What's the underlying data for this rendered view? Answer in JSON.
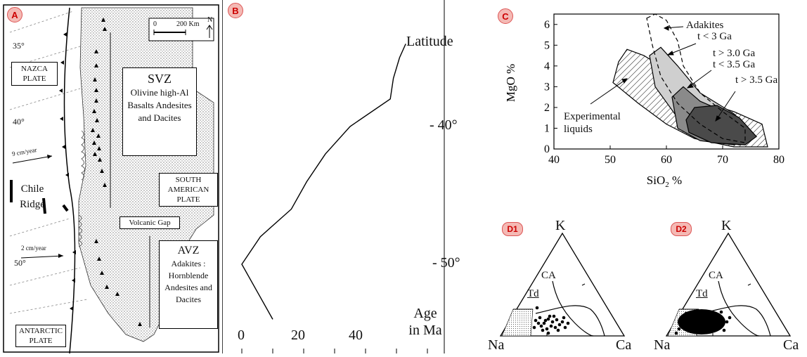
{
  "panel_a": {
    "badge": "A",
    "scale_zero": "0",
    "scale_distance": "200 Km",
    "north": "N",
    "lat_35": "35°",
    "lat_40": "40°",
    "lat_50": "50°",
    "nazca": "NAZCA PLATE",
    "svz_title": "SVZ",
    "svz_body": "Olivine high-Al Basalts Andesites and Dacites",
    "south_american": "SOUTH AMERICAN PLATE",
    "rate_9": "9 cm/year",
    "chile_ridge": "Chile Ridge",
    "volcanic_gap": "Volcanic Gap",
    "rate_2": "2 cm/year",
    "avz_title": "AVZ",
    "avz_body": "Adakites : Hornblende Andesites and Dacites",
    "antarctic": "ANTARCTIC PLATE"
  },
  "panel_b": {
    "badge": "B",
    "y_title": "Latitude",
    "y_tick_40": "- 40°",
    "y_tick_50": "- 50°",
    "x_title": "Age in Ma",
    "x_ticks": [
      "0",
      "20",
      "40"
    ]
  },
  "panel_c": {
    "badge": "C",
    "label_adakites": "Adakites",
    "label_t3": "t < 3 Ga",
    "label_t30": "t > 3.0 Ga",
    "label_t35a": "t < 3.5 Ga",
    "label_t35b": "t > 3.5 Ga",
    "label_exp1": "Experimental",
    "label_exp2": "liquids"
  },
  "panel_d1": {
    "badge": "D1",
    "k": "K",
    "na": "Na",
    "ca": "Ca",
    "ca_lbl": "CA",
    "td": "Td"
  },
  "panel_d2": {
    "badge": "D2",
    "k": "K",
    "na": "Na",
    "ca": "Ca",
    "ca_lbl": "CA",
    "td": "Td"
  },
  "chart_data": [
    {
      "type": "line",
      "panel": "B",
      "xlabel": "Age in Ma",
      "ylabel": "Latitude",
      "x_ticks": [
        0,
        20,
        40
      ],
      "y_ticks": [
        "- 40°",
        "- 50°"
      ],
      "series": [
        {
          "values": [
            {
              "lat": -34,
              "age": 53
            },
            {
              "lat": -35,
              "age": 51
            },
            {
              "lat": -36.5,
              "age": 49
            },
            {
              "lat": -38,
              "age": 48
            },
            {
              "lat": -40,
              "age": 35
            },
            {
              "lat": -42,
              "age": 27
            },
            {
              "lat": -44,
              "age": 21
            },
            {
              "lat": -46,
              "age": 16
            },
            {
              "lat": -48,
              "age": 6
            },
            {
              "lat": -50,
              "age": 0
            },
            {
              "lat": -52,
              "age": 5
            },
            {
              "lat": -54,
              "age": 10
            }
          ]
        }
      ]
    },
    {
      "type": "scatter",
      "panel": "C",
      "xlabel": "SiO2 %",
      "ylabel": "MgO %",
      "xlim": [
        40,
        80
      ],
      "ylim": [
        0,
        6.5
      ],
      "x_ticks": [
        40,
        50,
        60,
        70,
        80
      ],
      "y_ticks": [
        0,
        1,
        2,
        3,
        4,
        5,
        6
      ],
      "fields": [
        {
          "label": "Experimental liquids",
          "points": [
            [
              50.5,
              3.2
            ],
            [
              51.5,
              4.2
            ],
            [
              53,
              4.8
            ],
            [
              56,
              4.5
            ],
            [
              59,
              4
            ],
            [
              62,
              3
            ],
            [
              66,
              2.3
            ],
            [
              72,
              1.8
            ],
            [
              77,
              1.2
            ],
            [
              78,
              0.1
            ],
            [
              72,
              0.1
            ],
            [
              65,
              0.5
            ],
            [
              60,
              1.2
            ],
            [
              55,
              2.2
            ]
          ]
        },
        {
          "label": "Adakites",
          "points": [
            [
              56.5,
              6.3
            ],
            [
              58,
              6.5
            ],
            [
              60,
              6.2
            ],
            [
              62,
              5.2
            ],
            [
              63,
              4
            ],
            [
              66,
              2.7
            ],
            [
              70,
              1.8
            ],
            [
              74,
              1
            ],
            [
              74,
              0.3
            ],
            [
              70,
              0.5
            ],
            [
              66,
              1.2
            ],
            [
              62,
              2.2
            ],
            [
              59,
              3.5
            ],
            [
              57.5,
              5
            ]
          ]
        },
        {
          "label": "t < 3 Ga",
          "points": [
            [
              57,
              4.5
            ],
            [
              59,
              4.9
            ],
            [
              62,
              4
            ],
            [
              66,
              2.7
            ],
            [
              72,
              1.7
            ],
            [
              76,
              0.6
            ],
            [
              73,
              0.2
            ],
            [
              67,
              0.5
            ],
            [
              62,
              1.5
            ],
            [
              58,
              3
            ]
          ]
        },
        {
          "label": "t > 3.0 Ga t < 3.5 Ga",
          "points": [
            [
              61,
              2.5
            ],
            [
              63,
              3
            ],
            [
              66,
              2.3
            ],
            [
              72,
              1.6
            ],
            [
              75,
              0.6
            ],
            [
              72,
              0.2
            ],
            [
              66,
              0.4
            ],
            [
              62,
              1
            ]
          ]
        },
        {
          "label": "t > 3.5 Ga",
          "points": [
            [
              63.5,
              1.4
            ],
            [
              65,
              2
            ],
            [
              69,
              2.1
            ],
            [
              73,
              1.5
            ],
            [
              76,
              0.6
            ],
            [
              74,
              0.2
            ],
            [
              68,
              0.3
            ],
            [
              64,
              0.8
            ]
          ]
        }
      ]
    }
  ]
}
